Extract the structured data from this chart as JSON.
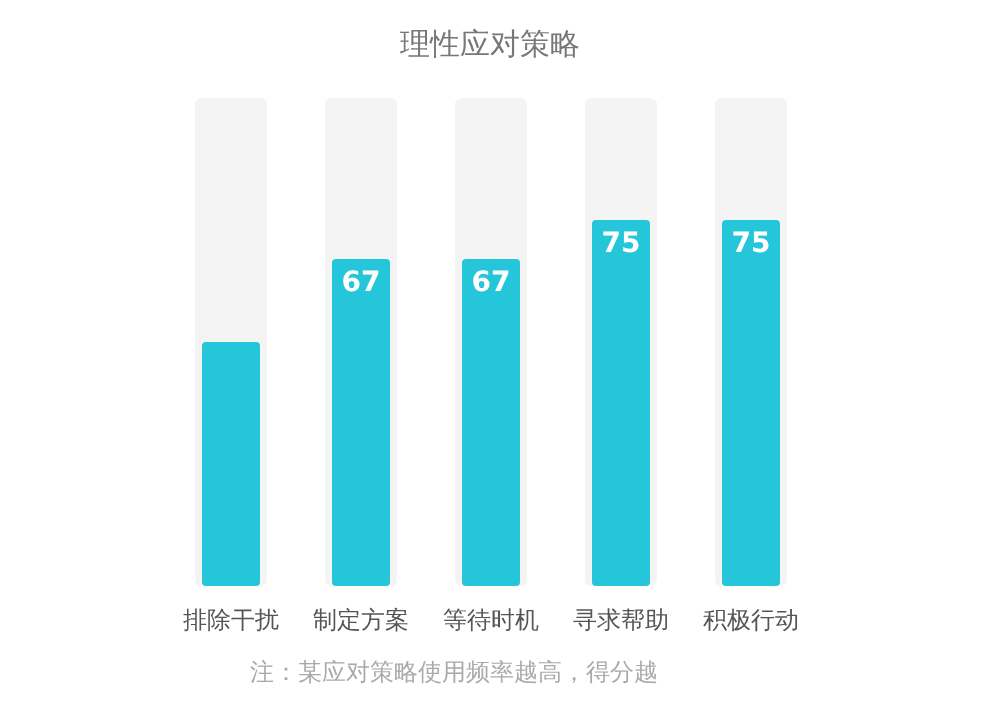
{
  "chart_data": {
    "type": "bar",
    "title": "理性应对策略",
    "categories": [
      "排除干扰",
      "制定方案",
      "等待时机",
      "寻求帮助",
      "积极行动"
    ],
    "values": [
      50,
      67,
      67,
      75,
      75
    ],
    "value_labels": [
      null,
      "67",
      "67",
      "75",
      "75"
    ],
    "color": "#26c6da",
    "ylim": [
      0,
      100
    ],
    "annotations": [
      "注：某应对策略使用频率越高，得分越"
    ]
  }
}
